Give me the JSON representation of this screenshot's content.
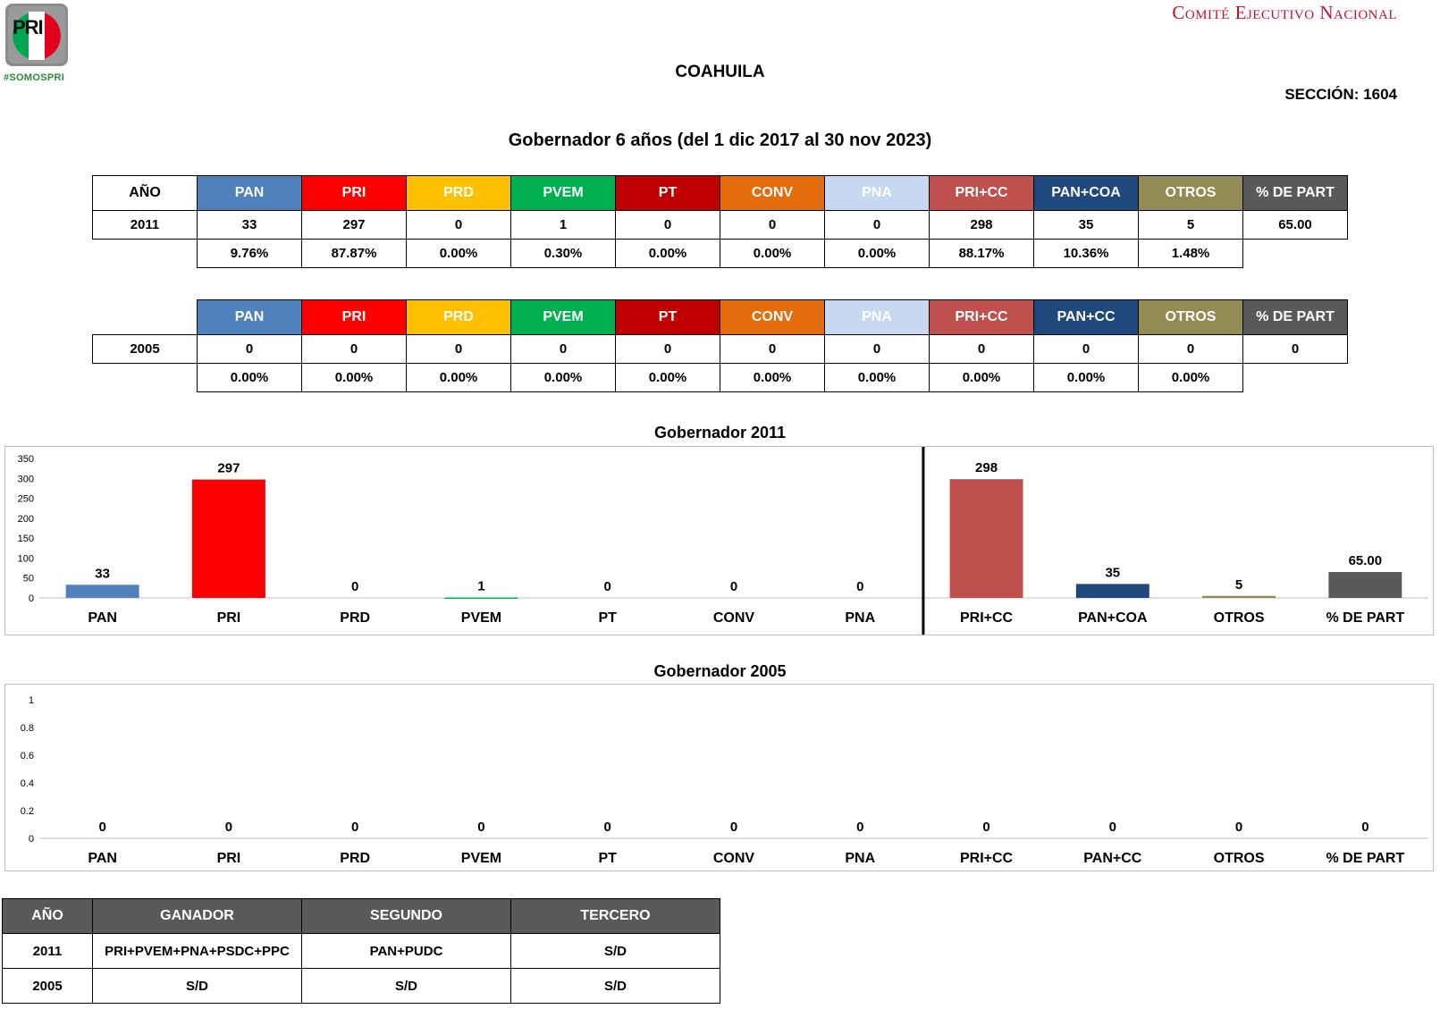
{
  "header": {
    "logo_text": "PRI",
    "hashtag": "#SOMOSPRI",
    "committee": "Comité Ejecutivo Nacional",
    "state": "COAHUILA",
    "section": "SECCIÓN: 1604",
    "title": "Gobernador 6 años (del 1 dic 2017 al 30 nov 2023)"
  },
  "colors": {
    "PAN": "#4f81bd",
    "PRI": "#ff0000",
    "PRD": "#ffc000",
    "PVEM": "#00b050",
    "PT": "#c00000",
    "CONV": "#e46c0a",
    "PNA": "#c6d9f1",
    "PRI+CC": "#c0504d",
    "PAN+COA": "#1f497d",
    "PAN+CC": "#1f497d",
    "OTROS": "#948a54",
    "% DE PART": "#595959"
  },
  "table_2011": {
    "year_header": "AÑO",
    "headers": [
      "PAN",
      "PRI",
      "PRD",
      "PVEM",
      "PT",
      "CONV",
      "PNA",
      "PRI+CC",
      "PAN+COA",
      "OTROS",
      "% DE PART"
    ],
    "year": "2011",
    "values": [
      "33",
      "297",
      "0",
      "1",
      "0",
      "0",
      "0",
      "298",
      "35",
      "5",
      "65.00"
    ],
    "percents": [
      "9.76%",
      "87.87%",
      "0.00%",
      "0.30%",
      "0.00%",
      "0.00%",
      "0.00%",
      "88.17%",
      "10.36%",
      "1.48%"
    ]
  },
  "table_2005": {
    "headers": [
      "PAN",
      "PRI",
      "PRD",
      "PVEM",
      "PT",
      "CONV",
      "PNA",
      "PRI+CC",
      "PAN+CC",
      "OTROS",
      "% DE PART"
    ],
    "year": "2005",
    "values": [
      "0",
      "0",
      "0",
      "0",
      "0",
      "0",
      "0",
      "0",
      "0",
      "0",
      "0"
    ],
    "percents": [
      "0.00%",
      "0.00%",
      "0.00%",
      "0.00%",
      "0.00%",
      "0.00%",
      "0.00%",
      "0.00%",
      "0.00%",
      "0.00%"
    ]
  },
  "chart_data": [
    {
      "type": "bar",
      "title": "Gobernador  2011",
      "categories": [
        "PAN",
        "PRI",
        "PRD",
        "PVEM",
        "PT",
        "CONV",
        "PNA",
        "PRI+CC",
        "PAN+COA",
        "OTROS",
        "% DE PART"
      ],
      "values": [
        33,
        297,
        0,
        1,
        0,
        0,
        0,
        298,
        35,
        5,
        65.0
      ],
      "labels": [
        "33",
        "297",
        "0",
        "1",
        "0",
        "0",
        "0",
        "298",
        "35",
        "5",
        "65.00"
      ],
      "ylim": [
        0,
        350
      ],
      "yticks": [
        "0",
        "50",
        "100",
        "150",
        "200",
        "250",
        "300",
        "350"
      ],
      "divider_after": "PNA",
      "xlabel": "",
      "ylabel": ""
    },
    {
      "type": "bar",
      "title": "Gobernador  2005",
      "categories": [
        "PAN",
        "PRI",
        "PRD",
        "PVEM",
        "PT",
        "CONV",
        "PNA",
        "PRI+CC",
        "PAN+CC",
        "OTROS",
        "% DE PART"
      ],
      "values": [
        0,
        0,
        0,
        0,
        0,
        0,
        0,
        0,
        0,
        0,
        0
      ],
      "labels": [
        "0",
        "0",
        "0",
        "0",
        "0",
        "0",
        "0",
        "0",
        "0",
        "0",
        "0"
      ],
      "ylim": [
        0,
        1
      ],
      "yticks": [
        "0",
        "0.2",
        "0.4",
        "0.6",
        "0.8",
        "1"
      ],
      "xlabel": "",
      "ylabel": ""
    }
  ],
  "summary": {
    "headers": [
      "AÑO",
      "GANADOR",
      "SEGUNDO",
      "TERCERO"
    ],
    "rows": [
      [
        "2011",
        "PRI+PVEM+PNA+PSDC+PPC",
        "PAN+PUDC",
        "S/D"
      ],
      [
        "2005",
        "S/D",
        "S/D",
        "S/D"
      ]
    ]
  }
}
